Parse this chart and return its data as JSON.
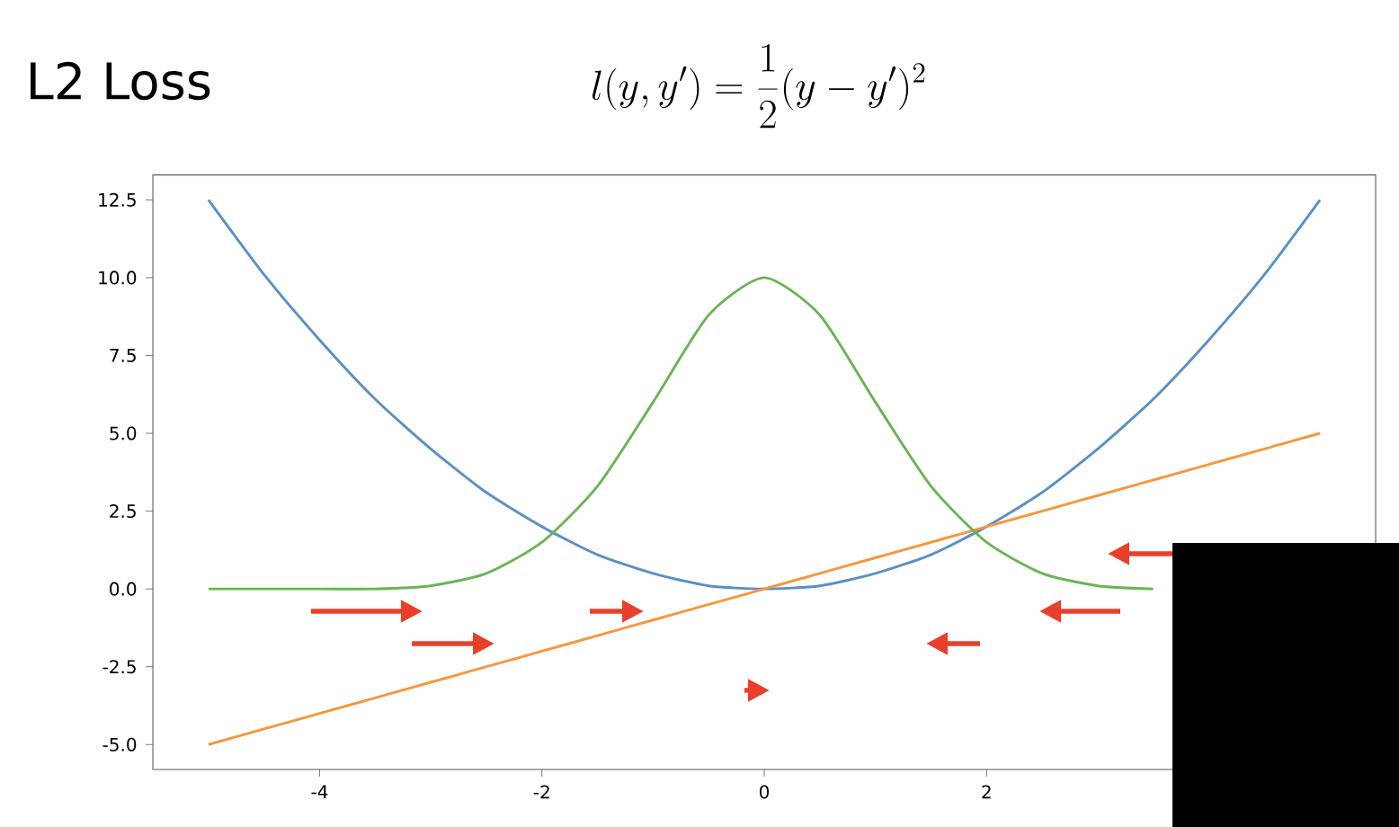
{
  "chart_data": {
    "type": "line",
    "title": "L2 Loss",
    "subtitle": "l(y, y') = \\frac{1}{2}(y - y')^2",
    "x": [
      -5,
      -4.5,
      -4,
      -3.5,
      -3,
      -2.5,
      -2,
      -1.5,
      -1,
      -0.5,
      0,
      0.5,
      1,
      1.5,
      2,
      2.5,
      3,
      3.5,
      4,
      4.5,
      5
    ],
    "series": [
      {
        "color": "#5b8fc6",
        "values": [
          12.5,
          10.1,
          8,
          6.1,
          4.5,
          3.1,
          2,
          1.1,
          0.5,
          0.1,
          0,
          0.1,
          0.5,
          1.1,
          2,
          3.1,
          4.5,
          6.1,
          8,
          10.1,
          12.5
        ]
      },
      {
        "color": "#f7963c",
        "values": [
          -5,
          -4.5,
          -4,
          -3.5,
          -3,
          -2.5,
          -2,
          -1.5,
          -1,
          -0.5,
          0,
          0.5,
          1,
          1.5,
          2,
          2.5,
          3,
          3.5,
          4,
          4.5,
          5
        ]
      },
      {
        "color": "#6ab456",
        "values": [
          0,
          0,
          0,
          0,
          0.1,
          0.5,
          1.5,
          3.3,
          6.0,
          8.8,
          10,
          8.8,
          6.0,
          3.3,
          1.5,
          0.5,
          0.1,
          0,
          null,
          null,
          null
        ]
      }
    ],
    "xlim": [
      -5.5,
      5.5
    ],
    "ylim": [
      -5.8,
      13.3
    ],
    "xticks": [
      -4,
      -2,
      0,
      2
    ],
    "yticks": [
      {
        "value": -5,
        "label": "-5.0"
      },
      {
        "value": -2.5,
        "label": "-2.5"
      },
      {
        "value": 0,
        "label": "0.0"
      },
      {
        "value": 2.5,
        "label": "2.5"
      },
      {
        "value": 5,
        "label": "5.0"
      },
      {
        "value": 7.5,
        "label": "7.5"
      },
      {
        "value": 10,
        "label": "10.0"
      },
      {
        "value": 12.5,
        "label": "12.5"
      }
    ],
    "grid": false
  }
}
